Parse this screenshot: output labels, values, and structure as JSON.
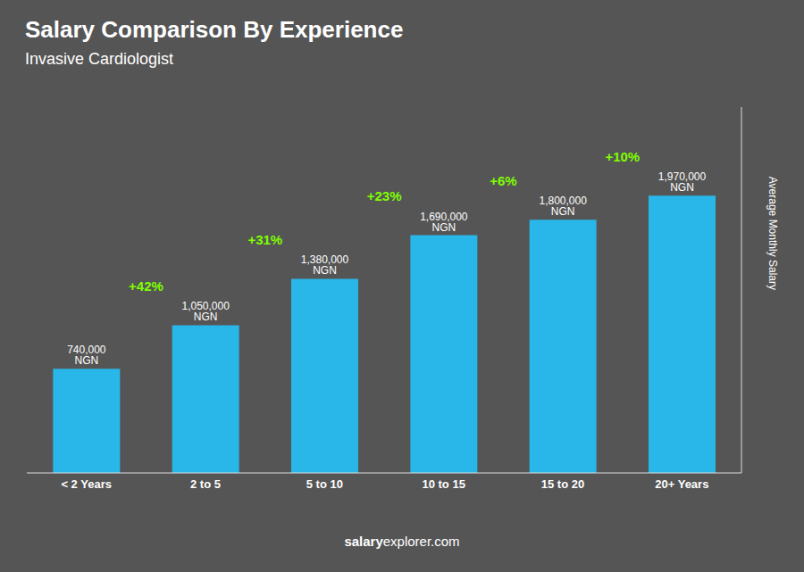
{
  "chart_data": {
    "type": "bar",
    "title": "Salary Comparison By Experience",
    "subtitle": "Invasive Cardiologist",
    "ylabel": "Average Monthly Salary",
    "footer": [
      "salary",
      "explorer.com"
    ],
    "categories": [
      "< 2 Years",
      "2 to 5",
      "5 to 10",
      "10 to 15",
      "15 to 20",
      "20+ Years"
    ],
    "values": [
      740000,
      1050000,
      1380000,
      1690000,
      1800000,
      1970000
    ],
    "value_labels": [
      "740,000 NGN",
      "1,050,000 NGN",
      "1,380,000 NGN",
      "1,690,000 NGN",
      "1,800,000 NGN",
      "1,970,000 NGN"
    ],
    "annotations": [
      "+42%",
      "+31%",
      "+23%",
      "+6%",
      "+10%"
    ],
    "color": "#29B6E8",
    "ylim": [
      0,
      2600000
    ],
    "grid": false,
    "data_labels": true,
    "tick_labels": "x"
  }
}
